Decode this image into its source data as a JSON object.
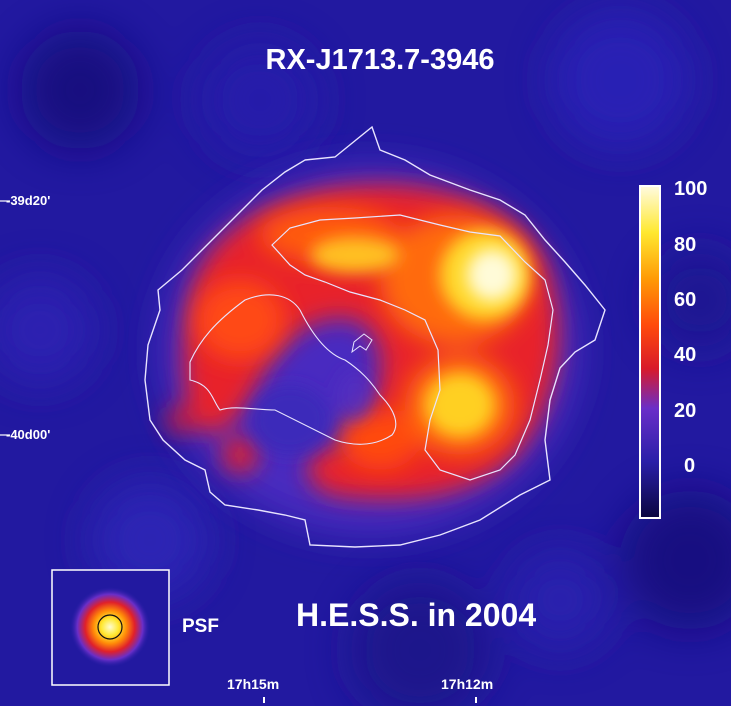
{
  "title": "RX-J1713.7-3946",
  "subtitle": "H.E.S.S. in 2004",
  "psf_label": "PSF",
  "axes": {
    "declination_labels": [
      "-39d20'",
      "-40d00'"
    ],
    "right_ascension_labels": [
      "17h15m",
      "17h12m"
    ]
  },
  "colorbar": {
    "ticks": [
      "100",
      "80",
      "60",
      "40",
      "20",
      "0"
    ],
    "colors": [
      "#0a0640",
      "#2a1fa8",
      "#7a33c8",
      "#d81a2a",
      "#ff4a0c",
      "#ff9a06",
      "#ffe830",
      "#fffbe0"
    ]
  }
}
